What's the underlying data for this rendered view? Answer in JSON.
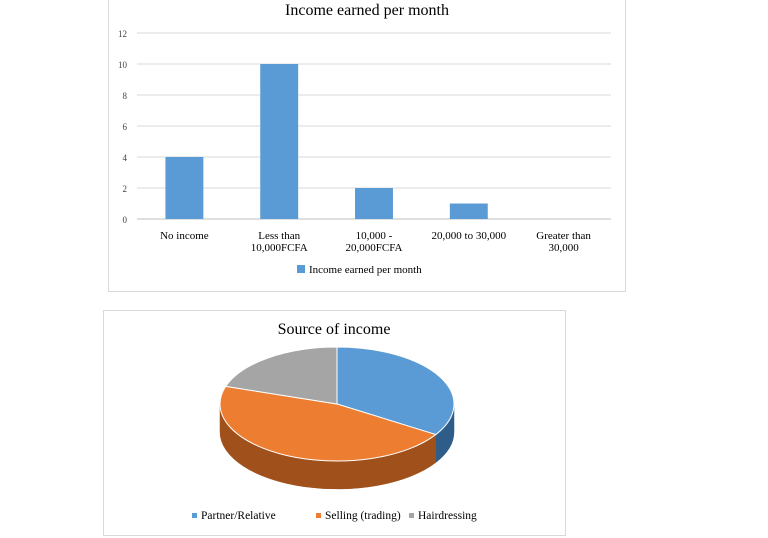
{
  "chart_data": [
    {
      "type": "bar",
      "title": "Income earned per month",
      "categories": [
        "No income",
        "Less than 10,000FCFA",
        "10,000 - 20,000FCFA",
        "20,000 to 30,000",
        "Greater than 30,000"
      ],
      "category_lines": [
        [
          "No income"
        ],
        [
          "Less than",
          "10,000FCFA"
        ],
        [
          "10,000 -",
          "20,000FCFA"
        ],
        [
          "20,000 to 30,000"
        ],
        [
          "Greater than",
          "30,000"
        ]
      ],
      "series": [
        {
          "name": "Income earned per month",
          "values": [
            4,
            10,
            2,
            1,
            0
          ]
        }
      ],
      "yticks": [
        "0",
        "2",
        "4",
        "6",
        "8",
        "10",
        "12"
      ],
      "ylim": [
        0,
        12
      ],
      "grid": true,
      "legend_position": "bottom",
      "colors": {
        "bar": "#5b9bd5",
        "grid": "#d9d9d9",
        "axis": "#bfbfbf"
      }
    },
    {
      "type": "pie",
      "title": "Source of income",
      "categories": [
        "Partner/Relative",
        "Selling (trading)",
        "Hairdressing"
      ],
      "values": [
        34,
        46,
        20
      ],
      "legend_position": "bottom",
      "colors": [
        "#5b9bd5",
        "#ed7d31",
        "#a5a5a5"
      ],
      "dark_colors": [
        "#2e5d8a",
        "#a0501a",
        "#6e6e6e"
      ]
    }
  ]
}
